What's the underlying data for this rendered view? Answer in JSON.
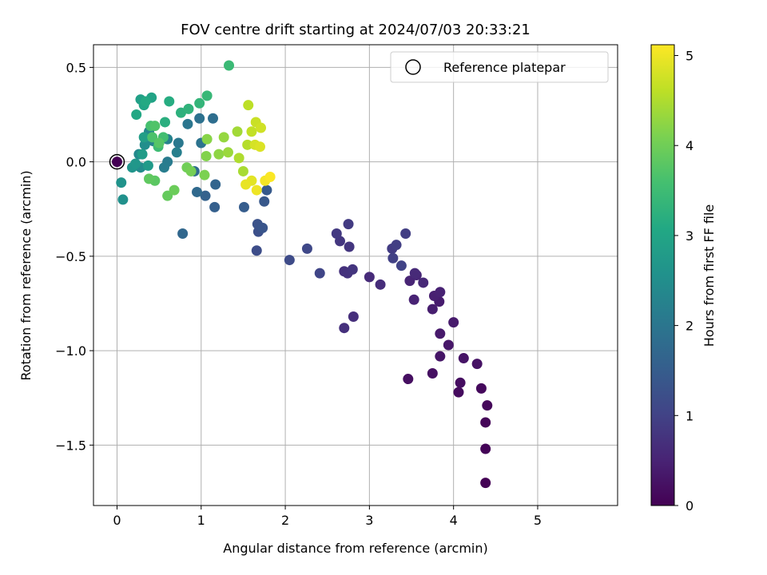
{
  "chart_data": {
    "type": "scatter",
    "title": "FOV centre drift starting at 2024/07/03 20:33:21",
    "xlabel": "Angular distance from reference (arcmin)",
    "ylabel": "Rotation from reference (arcmin)",
    "xlim": [
      -0.28,
      5.95
    ],
    "ylim": [
      -1.82,
      0.62
    ],
    "xticks": [
      0,
      1,
      2,
      3,
      4,
      5
    ],
    "xtick_labels": [
      "0",
      "1",
      "2",
      "3",
      "4",
      "5"
    ],
    "yticks": [
      0.5,
      0.0,
      -0.5,
      -1.0,
      -1.5
    ],
    "ytick_labels": [
      "0.5",
      "0.0",
      "−0.5",
      "−1.0",
      "−1.5"
    ],
    "grid": true,
    "legend": {
      "position": "top-right",
      "entries": [
        "Reference platepar"
      ]
    },
    "reference_point": {
      "x": 0.0,
      "y": 0.0,
      "label": "Reference platepar"
    },
    "colorbar": {
      "label": "Hours from first FF file",
      "colormap": "viridis",
      "range": [
        0,
        5.12
      ],
      "ticks": [
        0,
        1,
        2,
        3,
        4,
        5
      ],
      "tick_labels": [
        "0",
        "1",
        "2",
        "3",
        "4",
        "5"
      ]
    },
    "series": [
      {
        "color_by": "hours",
        "points": [
          [
            4.38,
            -1.7,
            0.02
          ],
          [
            4.38,
            -1.52,
            0.05
          ],
          [
            4.38,
            -1.38,
            0.08
          ],
          [
            4.4,
            -1.29,
            0.1
          ],
          [
            4.33,
            -1.2,
            0.12
          ],
          [
            4.06,
            -1.22,
            0.15
          ],
          [
            4.08,
            -1.17,
            0.18
          ],
          [
            3.46,
            -1.15,
            0.2
          ],
          [
            3.75,
            -1.12,
            0.22
          ],
          [
            4.28,
            -1.07,
            0.25
          ],
          [
            4.12,
            -1.04,
            0.28
          ],
          [
            3.84,
            -1.03,
            0.3
          ],
          [
            3.94,
            -0.97,
            0.32
          ],
          [
            3.84,
            -0.91,
            0.35
          ],
          [
            4.0,
            -0.85,
            0.38
          ],
          [
            3.83,
            -0.74,
            0.4
          ],
          [
            3.75,
            -0.78,
            0.42
          ],
          [
            3.77,
            -0.71,
            0.45
          ],
          [
            3.84,
            -0.69,
            0.48
          ],
          [
            3.53,
            -0.73,
            0.5
          ],
          [
            3.48,
            -0.63,
            0.52
          ],
          [
            3.56,
            -0.6,
            0.55
          ],
          [
            3.64,
            -0.64,
            0.58
          ],
          [
            3.54,
            -0.59,
            0.6
          ],
          [
            3.0,
            -0.61,
            0.62
          ],
          [
            3.13,
            -0.65,
            0.65
          ],
          [
            2.81,
            -0.82,
            0.68
          ],
          [
            2.7,
            -0.88,
            0.7
          ],
          [
            2.7,
            -0.58,
            0.72
          ],
          [
            2.74,
            -0.59,
            0.75
          ],
          [
            2.8,
            -0.57,
            0.78
          ],
          [
            2.76,
            -0.45,
            0.8
          ],
          [
            2.65,
            -0.42,
            0.82
          ],
          [
            2.61,
            -0.38,
            0.85
          ],
          [
            2.75,
            -0.33,
            0.88
          ],
          [
            3.27,
            -0.46,
            0.9
          ],
          [
            3.43,
            -0.38,
            0.92
          ],
          [
            3.32,
            -0.44,
            0.95
          ],
          [
            3.28,
            -0.51,
            0.98
          ],
          [
            3.38,
            -0.55,
            1.0
          ],
          [
            2.41,
            -0.59,
            1.05
          ],
          [
            2.26,
            -0.46,
            1.1
          ],
          [
            2.05,
            -0.52,
            1.15
          ],
          [
            1.66,
            -0.47,
            1.2
          ],
          [
            1.68,
            -0.37,
            1.25
          ],
          [
            1.67,
            -0.33,
            1.3
          ],
          [
            1.73,
            -0.35,
            1.35
          ],
          [
            1.75,
            -0.21,
            1.4
          ],
          [
            1.78,
            -0.15,
            1.45
          ],
          [
            1.51,
            -0.24,
            1.5
          ],
          [
            1.16,
            -0.24,
            1.55
          ],
          [
            1.05,
            -0.18,
            1.6
          ],
          [
            1.17,
            -0.12,
            1.65
          ],
          [
            0.78,
            -0.38,
            1.7
          ],
          [
            0.95,
            -0.16,
            1.75
          ],
          [
            0.92,
            -0.05,
            1.8
          ],
          [
            1.14,
            0.23,
            1.85
          ],
          [
            0.98,
            0.23,
            1.9
          ],
          [
            1.0,
            0.1,
            1.95
          ],
          [
            0.84,
            0.2,
            2.0
          ],
          [
            0.73,
            0.1,
            2.05
          ],
          [
            0.6,
            0.0,
            2.1
          ],
          [
            0.56,
            -0.03,
            2.15
          ],
          [
            0.71,
            0.05,
            2.2
          ],
          [
            0.6,
            0.12,
            2.25
          ],
          [
            0.43,
            0.11,
            2.3
          ],
          [
            0.38,
            0.16,
            2.35
          ],
          [
            0.26,
            0.04,
            2.4
          ],
          [
            0.28,
            -0.03,
            2.45
          ],
          [
            0.33,
            0.09,
            2.5
          ],
          [
            0.07,
            -0.2,
            2.55
          ],
          [
            0.05,
            -0.11,
            2.6
          ],
          [
            0.18,
            -0.03,
            2.65
          ],
          [
            0.22,
            -0.01,
            2.7
          ],
          [
            0.37,
            -0.02,
            2.75
          ],
          [
            0.3,
            0.04,
            2.8
          ],
          [
            0.32,
            0.13,
            2.85
          ],
          [
            0.28,
            0.33,
            2.9
          ],
          [
            0.41,
            0.34,
            2.95
          ],
          [
            0.32,
            0.3,
            3.0
          ],
          [
            0.23,
            0.25,
            3.05
          ],
          [
            0.34,
            0.32,
            3.1
          ],
          [
            0.62,
            0.32,
            3.15
          ],
          [
            0.57,
            0.21,
            3.2
          ],
          [
            0.76,
            0.26,
            3.25
          ],
          [
            0.85,
            0.28,
            3.3
          ],
          [
            0.98,
            0.31,
            3.35
          ],
          [
            1.07,
            0.35,
            3.4
          ],
          [
            1.33,
            0.51,
            3.45
          ],
          [
            0.49,
            0.08,
            3.5
          ],
          [
            0.55,
            0.13,
            3.55
          ],
          [
            0.4,
            0.19,
            3.6
          ],
          [
            0.42,
            0.13,
            3.65
          ],
          [
            0.45,
            0.19,
            3.7
          ],
          [
            0.5,
            0.1,
            3.75
          ],
          [
            0.45,
            -0.1,
            3.8
          ],
          [
            0.38,
            -0.09,
            3.85
          ],
          [
            0.6,
            -0.18,
            3.9
          ],
          [
            0.68,
            -0.15,
            3.95
          ],
          [
            0.83,
            -0.03,
            4.0
          ],
          [
            0.88,
            -0.05,
            4.05
          ],
          [
            1.04,
            -0.07,
            4.1
          ],
          [
            1.06,
            0.03,
            4.15
          ],
          [
            1.07,
            0.12,
            4.2
          ],
          [
            1.21,
            0.04,
            4.25
          ],
          [
            1.27,
            0.13,
            4.3
          ],
          [
            1.32,
            0.05,
            4.35
          ],
          [
            1.43,
            0.16,
            4.4
          ],
          [
            1.5,
            -0.05,
            4.45
          ],
          [
            1.45,
            0.02,
            4.5
          ],
          [
            1.55,
            0.09,
            4.55
          ],
          [
            1.56,
            0.3,
            4.6
          ],
          [
            1.6,
            0.16,
            4.65
          ],
          [
            1.65,
            0.21,
            4.7
          ],
          [
            1.71,
            0.18,
            4.75
          ],
          [
            1.64,
            0.09,
            4.8
          ],
          [
            1.7,
            0.08,
            4.85
          ],
          [
            1.6,
            -0.1,
            4.9
          ],
          [
            1.53,
            -0.12,
            4.95
          ],
          [
            1.66,
            -0.15,
            5.0
          ],
          [
            1.76,
            -0.1,
            5.05
          ],
          [
            1.82,
            -0.08,
            5.1
          ]
        ]
      }
    ]
  }
}
